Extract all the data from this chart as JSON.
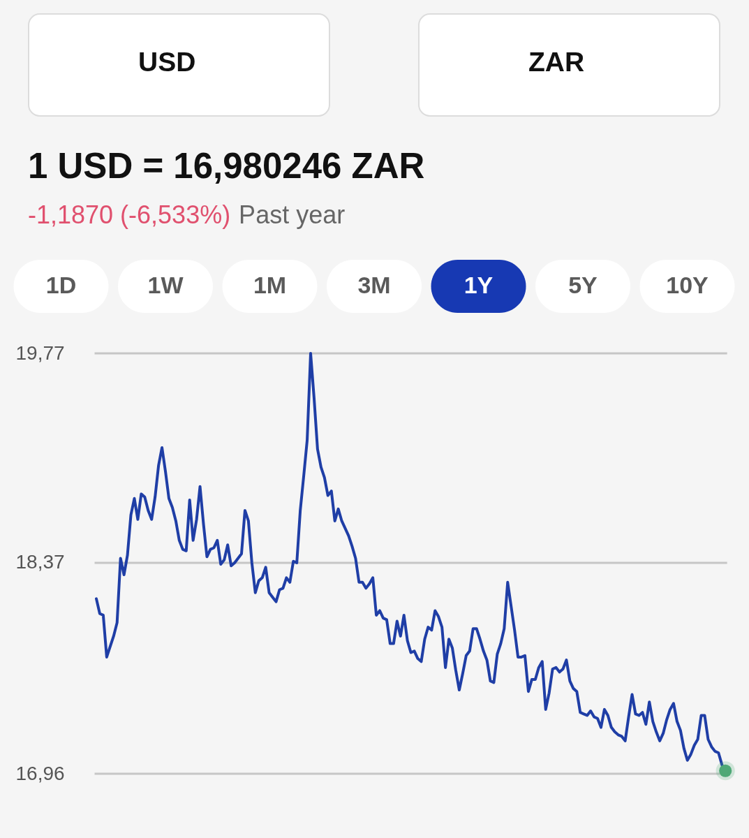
{
  "chart_data": {
    "type": "line",
    "title": "1 USD = 16,980246 ZAR",
    "annotations": [
      "USD",
      "ZAR",
      "-1,1870 (-6,533%)",
      "Past year",
      "1D",
      "1W",
      "1M",
      "3M",
      "1Y",
      "5Y",
      "10Y"
    ],
    "categories": [
      null,
      null,
      null,
      null,
      null,
      null,
      null,
      null,
      null,
      null,
      null,
      null,
      null,
      null,
      null,
      null,
      null,
      null,
      null,
      null,
      null,
      null,
      null,
      null,
      null,
      null,
      null,
      null,
      null,
      null,
      null,
      null,
      null,
      null,
      null,
      null,
      null,
      null,
      null,
      null,
      null,
      null,
      null,
      null,
      null,
      null,
      null,
      null,
      null,
      null,
      null,
      null,
      null,
      null,
      null,
      null,
      null,
      null,
      null,
      null,
      null,
      null,
      null,
      null,
      null,
      null,
      null,
      null,
      null,
      null,
      null,
      null,
      null,
      null,
      null,
      null,
      null,
      null,
      null,
      null,
      null,
      null,
      null,
      null,
      null,
      null,
      null,
      null,
      null,
      null,
      null,
      null,
      null,
      null,
      null,
      null,
      null,
      null,
      null,
      null,
      null,
      null,
      null,
      null,
      null,
      null,
      null,
      null,
      null,
      null,
      null,
      null,
      null,
      null,
      null,
      null,
      null,
      null,
      null,
      null,
      null,
      null,
      null,
      null,
      null,
      null,
      null,
      null,
      null,
      null,
      null,
      null,
      null,
      null,
      null,
      null,
      null,
      null,
      null,
      null,
      null,
      null,
      null,
      null,
      null,
      null,
      null,
      null,
      null,
      null,
      null,
      null,
      null,
      null,
      null,
      null,
      null,
      null,
      null,
      null,
      null,
      null,
      null,
      null,
      null,
      null,
      null,
      null,
      null,
      null,
      null,
      null,
      null,
      null,
      null,
      null,
      null,
      null,
      null,
      null,
      null,
      null,
      null
    ],
    "ylim": [
      16.96,
      19.77
    ],
    "yticks": [
      {
        "value": 16.96,
        "label": "16,96"
      },
      {
        "value": 18.37,
        "label": "18,37"
      },
      {
        "value": 19.77,
        "label": "19,77"
      }
    ],
    "grid": "y",
    "series": [
      {
        "color": "#1f3ea6",
        "values": [
          18.13,
          18.03,
          18.02,
          17.74,
          17.81,
          17.88,
          17.97,
          18.4,
          18.29,
          18.42,
          18.69,
          18.8,
          18.66,
          18.83,
          18.81,
          18.72,
          18.66,
          18.81,
          19.02,
          19.14,
          18.98,
          18.8,
          18.74,
          18.65,
          18.52,
          18.46,
          18.45,
          18.79,
          18.52,
          18.66,
          18.88,
          18.63,
          18.41,
          18.46,
          18.47,
          18.52,
          18.36,
          18.39,
          18.49,
          18.35,
          18.37,
          18.4,
          18.43,
          18.72,
          18.65,
          18.37,
          18.17,
          18.25,
          18.27,
          18.34,
          18.17,
          18.14,
          18.11,
          18.19,
          18.2,
          18.27,
          18.24,
          18.38,
          18.37,
          18.72,
          18.95,
          19.19,
          19.77,
          19.47,
          19.13,
          19.01,
          18.94,
          18.82,
          18.85,
          18.65,
          18.73,
          18.65,
          18.6,
          18.55,
          18.48,
          18.4,
          18.24,
          18.24,
          18.2,
          18.23,
          18.27,
          18.02,
          18.05,
          18.0,
          17.99,
          17.83,
          17.83,
          17.98,
          17.88,
          18.02,
          17.85,
          17.77,
          17.78,
          17.73,
          17.71,
          17.86,
          17.94,
          17.92,
          18.05,
          18.01,
          17.94,
          17.67,
          17.86,
          17.8,
          17.65,
          17.52,
          17.63,
          17.75,
          17.78,
          17.93,
          17.93,
          17.86,
          17.78,
          17.72,
          17.58,
          17.57,
          17.76,
          17.83,
          17.93,
          18.24,
          18.08,
          17.92,
          17.74,
          17.74,
          17.75,
          17.51,
          17.59,
          17.59,
          17.67,
          17.71,
          17.39,
          17.5,
          17.66,
          17.67,
          17.64,
          17.66,
          17.72,
          17.58,
          17.53,
          17.51,
          17.37,
          17.36,
          17.35,
          17.38,
          17.34,
          17.33,
          17.27,
          17.39,
          17.35,
          17.27,
          17.24,
          17.22,
          17.21,
          17.18,
          17.34,
          17.49,
          17.36,
          17.35,
          17.37,
          17.29,
          17.44,
          17.31,
          17.24,
          17.18,
          17.23,
          17.32,
          17.39,
          17.43,
          17.31,
          17.25,
          17.13,
          17.05,
          17.09,
          17.15,
          17.19,
          17.35,
          17.35,
          17.19,
          17.14,
          17.11,
          17.1,
          17.02,
          16.98
        ]
      },
      {
        "type": "scatter",
        "color": "#4fa877",
        "values": [
          null,
          null,
          null,
          null,
          null,
          null,
          null,
          null,
          null,
          null,
          null,
          null,
          null,
          null,
          null,
          null,
          null,
          null,
          null,
          null,
          null,
          null,
          null,
          null,
          null,
          null,
          null,
          null,
          null,
          null,
          null,
          null,
          null,
          null,
          null,
          null,
          null,
          null,
          null,
          null,
          null,
          null,
          null,
          null,
          null,
          null,
          null,
          null,
          null,
          null,
          null,
          null,
          null,
          null,
          null,
          null,
          null,
          null,
          null,
          null,
          null,
          null,
          null,
          null,
          null,
          null,
          null,
          null,
          null,
          null,
          null,
          null,
          null,
          null,
          null,
          null,
          null,
          null,
          null,
          null,
          null,
          null,
          null,
          null,
          null,
          null,
          null,
          null,
          null,
          null,
          null,
          null,
          null,
          null,
          null,
          null,
          null,
          null,
          null,
          null,
          null,
          null,
          null,
          null,
          null,
          null,
          null,
          null,
          null,
          null,
          null,
          null,
          null,
          null,
          null,
          null,
          null,
          null,
          null,
          null,
          null,
          null,
          null,
          null,
          null,
          null,
          null,
          null,
          null,
          null,
          null,
          null,
          null,
          null,
          null,
          null,
          null,
          null,
          null,
          null,
          null,
          null,
          null,
          null,
          null,
          null,
          null,
          null,
          null,
          null,
          null,
          null,
          null,
          null,
          null,
          null,
          null,
          null,
          null,
          null,
          null,
          null,
          null,
          null,
          null,
          null,
          null,
          null,
          null,
          null,
          null,
          null,
          null,
          null,
          null,
          null,
          null,
          null,
          null,
          null,
          null,
          null,
          16.98
        ]
      }
    ]
  }
}
